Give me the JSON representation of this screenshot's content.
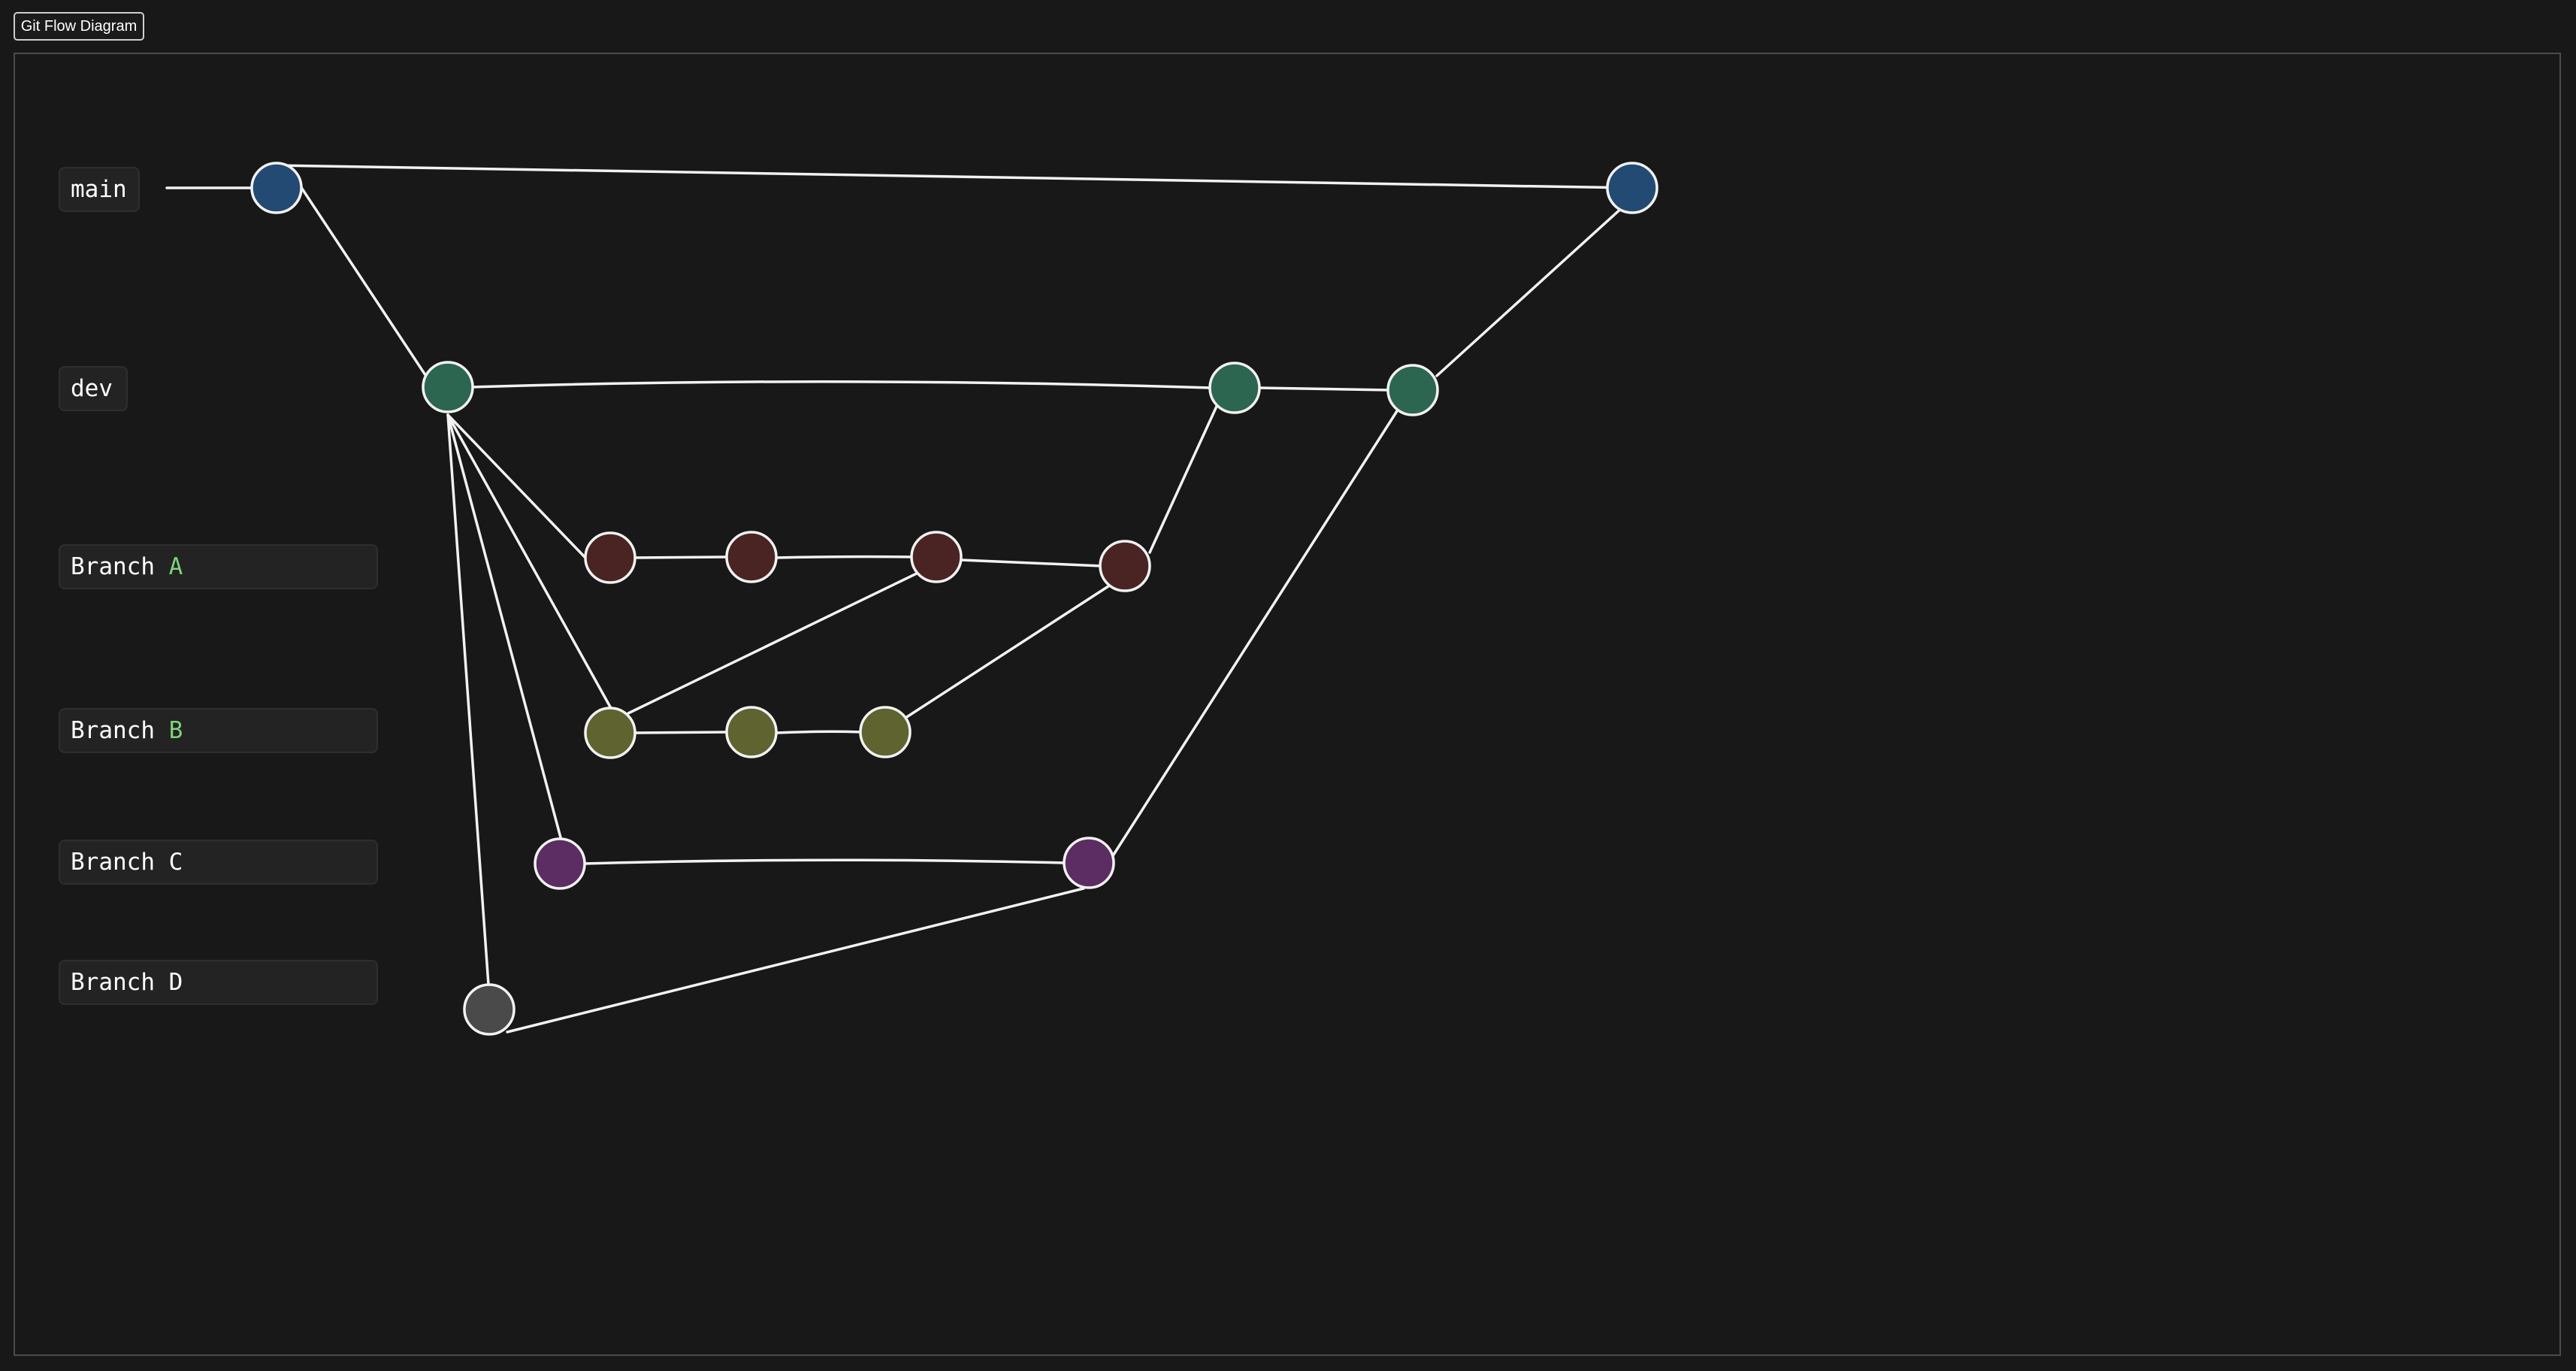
{
  "title_button": "Git Flow Diagram",
  "branches": {
    "main": "main",
    "dev": "dev",
    "a": {
      "prefix": "Branch ",
      "suffix": "A"
    },
    "b": {
      "prefix": "Branch ",
      "suffix": "B"
    },
    "c": "Branch C",
    "d": "Branch D"
  },
  "colors": {
    "main": "#234a72",
    "dev": "#2d6650",
    "branch_a": "#4a2423",
    "branch_b": "#5f6330",
    "branch_c": "#5c2d62",
    "branch_d": "#4a4a4a",
    "accent_letter": "#7ed37a"
  }
}
